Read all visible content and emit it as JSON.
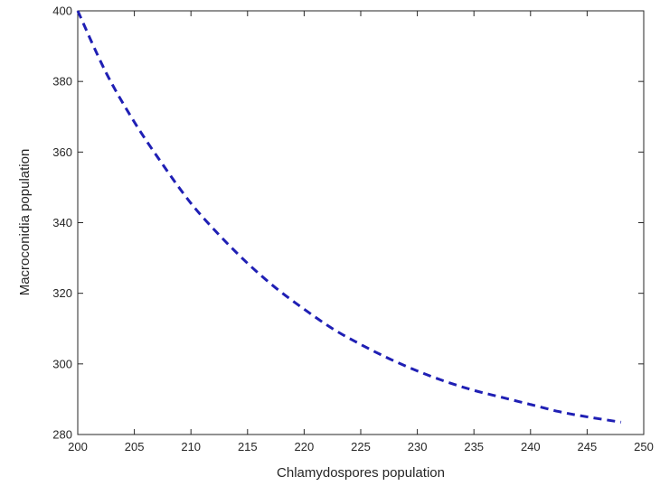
{
  "chart_data": {
    "type": "line",
    "title": "",
    "xlabel": "Chlamydospores population",
    "ylabel": "Macroconidia population",
    "xlim": [
      200,
      250
    ],
    "ylim": [
      280,
      400
    ],
    "xticks": [
      200,
      205,
      210,
      215,
      220,
      225,
      230,
      235,
      240,
      245,
      250
    ],
    "yticks": [
      280,
      300,
      320,
      340,
      360,
      380,
      400
    ],
    "grid": false,
    "legend": "none",
    "series": [
      {
        "line_style": "dashed",
        "color": "#1f1fb4",
        "x": [
          200,
          202.5,
          205,
          207.5,
          210,
          212.5,
          215,
          217.5,
          220,
          222.5,
          225,
          227.5,
          230,
          232.5,
          235,
          237.5,
          240,
          242.5,
          245,
          248
        ],
        "y": [
          400,
          382.5,
          368.5,
          356.5,
          345.5,
          336.5,
          328.5,
          321.5,
          315.5,
          310,
          305.5,
          301.5,
          298,
          295,
          292.5,
          290.5,
          288.5,
          286.5,
          285,
          283.5
        ]
      }
    ]
  }
}
